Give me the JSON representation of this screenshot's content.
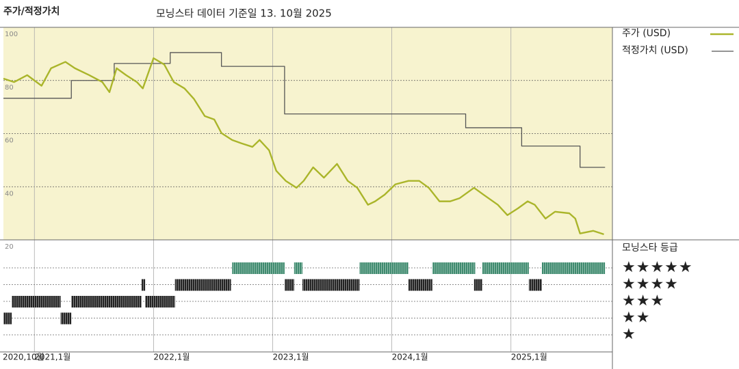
{
  "chart_data": {
    "type": "line",
    "title": "주가/적정가치",
    "subtitle": "모닝스타 데이터 기준일 13. 10월 2025",
    "xlim": [
      2020.74,
      2025.8
    ],
    "xticks": [
      {
        "value": 2020.74,
        "label": "2020,10월"
      },
      {
        "value": 2021,
        "label": "2021,1월"
      },
      {
        "value": 2022,
        "label": "2022,1월"
      },
      {
        "value": 2023,
        "label": "2023,1월"
      },
      {
        "value": 2024,
        "label": "2024,1월"
      },
      {
        "value": 2025,
        "label": "2025,1월"
      }
    ],
    "ylim": [
      20,
      100
    ],
    "yticks": [
      20,
      40,
      60,
      80,
      100
    ],
    "grid": true,
    "series": [
      {
        "name": "주가 (USD)",
        "color": "#aab52a",
        "x": [
          2020.74,
          2020.83,
          2020.94,
          2021.06,
          2021.14,
          2021.26,
          2021.34,
          2021.46,
          2021.57,
          2021.63,
          2021.69,
          2021.77,
          2021.86,
          2021.91,
          2022.0,
          2022.09,
          2022.17,
          2022.26,
          2022.34,
          2022.43,
          2022.51,
          2022.57,
          2022.66,
          2022.74,
          2022.83,
          2022.89,
          2022.97,
          2023.03,
          2023.11,
          2023.2,
          2023.26,
          2023.34,
          2023.43,
          2023.54,
          2023.63,
          2023.71,
          2023.8,
          2023.86,
          2023.94,
          2024.03,
          2024.14,
          2024.23,
          2024.31,
          2024.4,
          2024.49,
          2024.57,
          2024.69,
          2024.77,
          2024.89,
          2024.97,
          2025.06,
          2025.14,
          2025.2,
          2025.29,
          2025.37,
          2025.49,
          2025.54,
          2025.58,
          2025.69,
          2025.78
        ],
        "values": [
          80.7,
          79.4,
          82,
          78,
          84.6,
          87,
          84.6,
          82,
          79.4,
          75.6,
          84.6,
          82,
          79.4,
          77,
          88.4,
          86,
          79.4,
          77,
          73,
          66.6,
          65.3,
          60.2,
          57.6,
          56.3,
          55,
          57.6,
          53.7,
          46,
          42.2,
          39.6,
          42.2,
          47.3,
          43.4,
          48.6,
          42.2,
          39.6,
          33.2,
          34.5,
          37,
          40.9,
          42.2,
          42.2,
          39.6,
          34.5,
          34.5,
          35.7,
          39.6,
          37,
          33.2,
          29.3,
          31.9,
          34.5,
          33.2,
          28,
          30.6,
          30,
          28,
          22.4,
          23.4,
          22.1
        ]
      },
      {
        "name": "적정가치 (USD)",
        "color": "#555555",
        "step": true,
        "x": [
          2020.74,
          2021.31,
          2021.67,
          2022.14,
          2022.57,
          2023.1,
          2024.62,
          2025.09,
          2025.58,
          2025.79
        ],
        "values": [
          73.3,
          80,
          86.4,
          90.5,
          85.3,
          67.4,
          62.2,
          55.3,
          47.3,
          47.3
        ]
      }
    ],
    "rating": {
      "title": "모닝스타 등급",
      "rows": [
        {
          "label": "★★★★★",
          "level": 5,
          "color": "#3e8a6e",
          "segments": [
            [
              2022.66,
              2023.1
            ],
            [
              2023.18,
              2023.25
            ],
            [
              2023.73,
              2024.14
            ],
            [
              2024.34,
              2024.7
            ],
            [
              2024.76,
              2025.15
            ],
            [
              2025.26,
              2025.79
            ]
          ]
        },
        {
          "label": "★★★★",
          "level": 4,
          "color": "#222222",
          "segments": [
            [
              2021.9,
              2021.93
            ],
            [
              2022.18,
              2022.65
            ],
            [
              2023.1,
              2023.18
            ],
            [
              2023.25,
              2023.73
            ],
            [
              2024.14,
              2024.34
            ],
            [
              2024.69,
              2024.76
            ],
            [
              2025.15,
              2025.26
            ]
          ]
        },
        {
          "label": "★★★",
          "level": 3,
          "color": "#222222",
          "segments": [
            [
              2020.81,
              2021.22
            ],
            [
              2021.31,
              2021.9
            ],
            [
              2021.93,
              2022.18
            ]
          ]
        },
        {
          "label": "★★",
          "level": 2,
          "color": "#222222",
          "segments": [
            [
              2020.74,
              2020.81
            ],
            [
              2021.22,
              2021.31
            ]
          ]
        },
        {
          "label": "★",
          "level": 1,
          "color": "#222222",
          "segments": []
        }
      ]
    }
  }
}
